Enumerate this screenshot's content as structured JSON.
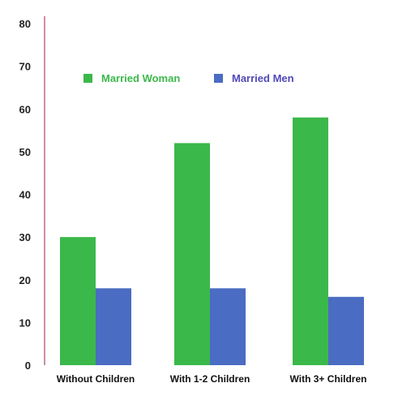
{
  "chart_data": {
    "type": "bar",
    "categories": [
      "Without Children",
      "With 1-2 Children",
      "With 3+ Children"
    ],
    "series": [
      {
        "name": "Married Woman",
        "values": [
          30,
          52,
          58
        ],
        "color": "#3bb84a"
      },
      {
        "name": "Married Men",
        "values": [
          18,
          18,
          16
        ],
        "color": "#4a6cc2"
      }
    ],
    "ylim": [
      0,
      80
    ],
    "yticks": [
      0,
      10,
      20,
      30,
      40,
      50,
      60,
      70,
      80
    ],
    "grid": false,
    "legend_position": "top-left",
    "legend_text_colors": [
      "#3bb84a",
      "#5048b8"
    ],
    "axis_color": "#9b1b4f"
  }
}
